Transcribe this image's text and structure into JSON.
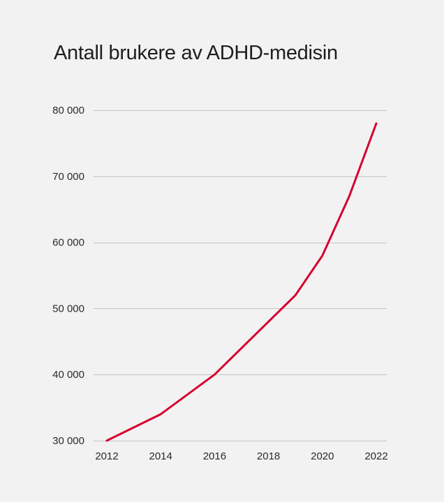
{
  "chart_data": {
    "type": "line",
    "title": "Antall brukere av ADHD-medisin",
    "xlabel": "",
    "ylabel": "",
    "x": [
      2012,
      2014,
      2016,
      2019,
      2020,
      2021,
      2022
    ],
    "series": [
      {
        "name": "Antall brukere",
        "color": "#d5002f",
        "values": [
          30000,
          34000,
          40000,
          52000,
          58000,
          67000,
          78000
        ]
      }
    ],
    "xlim": [
      2012,
      2022
    ],
    "ylim": [
      30000,
      80000
    ],
    "x_ticks": [
      2012,
      2014,
      2016,
      2018,
      2020,
      2022
    ],
    "x_tick_labels": [
      "2012",
      "2014",
      "2016",
      "2018",
      "2020",
      "2022"
    ],
    "y_ticks": [
      30000,
      40000,
      50000,
      60000,
      70000,
      80000
    ],
    "y_tick_labels": [
      "30 000",
      "40 000",
      "50 000",
      "60 000",
      "70 000",
      "80 000"
    ],
    "grid": true,
    "legend": "none"
  }
}
